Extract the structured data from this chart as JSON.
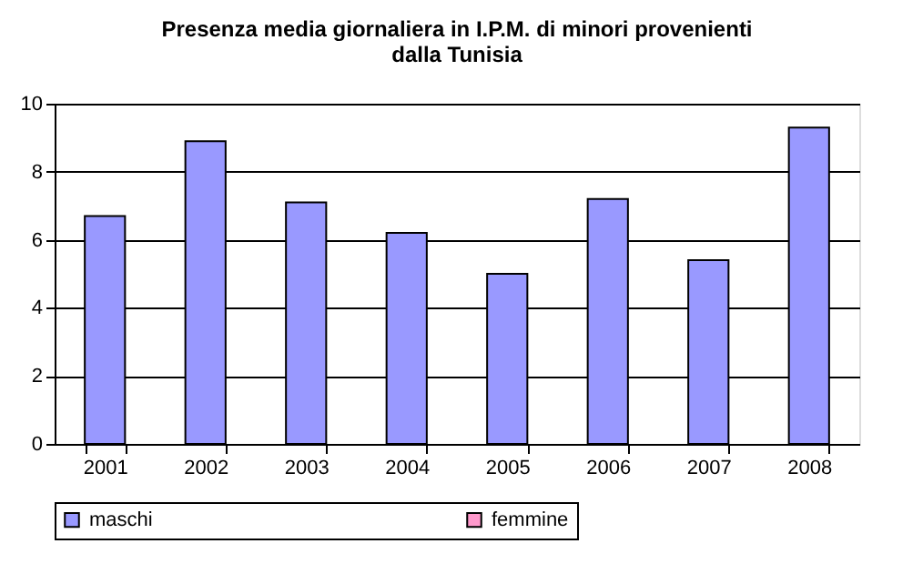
{
  "chart_data": {
    "type": "bar",
    "title": "Presenza media giornaliera in I.P.M. di minori provenienti\ndalla Tunisia",
    "categories": [
      "2001",
      "2002",
      "2003",
      "2004",
      "2005",
      "2006",
      "2007",
      "2008"
    ],
    "series": [
      {
        "name": "maschi",
        "color": "#9999ff",
        "values": [
          6.7,
          8.9,
          7.1,
          6.2,
          5.0,
          7.2,
          5.4,
          9.3
        ]
      },
      {
        "name": "femmine",
        "color": "#ff99cc",
        "values": [
          null,
          null,
          null,
          null,
          null,
          null,
          null,
          null
        ]
      }
    ],
    "ylim": [
      0,
      10
    ],
    "yticks": [
      0,
      2,
      4,
      6,
      8,
      10
    ],
    "grid": "y",
    "legend": "bottom"
  }
}
